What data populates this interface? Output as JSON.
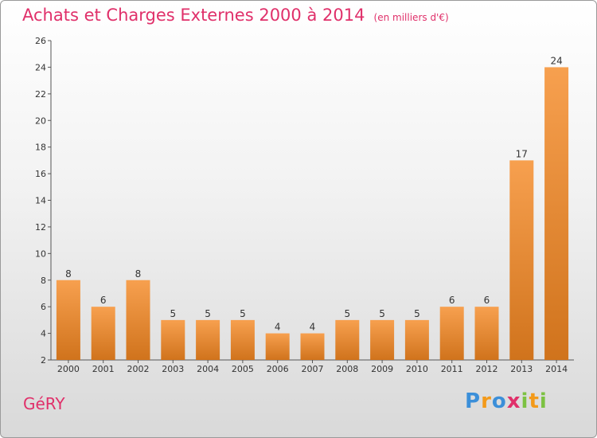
{
  "title": {
    "main": "Achats et Charges Externes 2000 à 2014",
    "unit": "(en milliers d'€)"
  },
  "commune": "GéRY",
  "logo": {
    "text": "Proxiti",
    "letters": [
      {
        "ch": "P",
        "color": "#3b8fd9"
      },
      {
        "ch": "r",
        "color": "#f39a1a"
      },
      {
        "ch": "o",
        "color": "#3b8fd9"
      },
      {
        "ch": "x",
        "color": "#e0306a"
      },
      {
        "ch": "i",
        "color": "#7cc242"
      },
      {
        "ch": "t",
        "color": "#f39a1a"
      },
      {
        "ch": "i",
        "color": "#7cc242"
      }
    ]
  },
  "colors": {
    "bar_top": "#f7a04f",
    "bar_bottom": "#d0731c",
    "title": "#e0306a",
    "axis": "#555555"
  },
  "chart_data": {
    "type": "bar",
    "categories": [
      "2000",
      "2001",
      "2002",
      "2003",
      "2004",
      "2005",
      "2006",
      "2007",
      "2008",
      "2009",
      "2010",
      "2011",
      "2012",
      "2013",
      "2014"
    ],
    "values": [
      8,
      6,
      8,
      5,
      5,
      5,
      4,
      4,
      5,
      5,
      5,
      6,
      6,
      17,
      24
    ],
    "ylim": [
      2,
      26
    ],
    "yticks": [
      2,
      4,
      6,
      8,
      10,
      12,
      14,
      16,
      18,
      20,
      22,
      24,
      26
    ],
    "grid": false,
    "legend": "none"
  }
}
